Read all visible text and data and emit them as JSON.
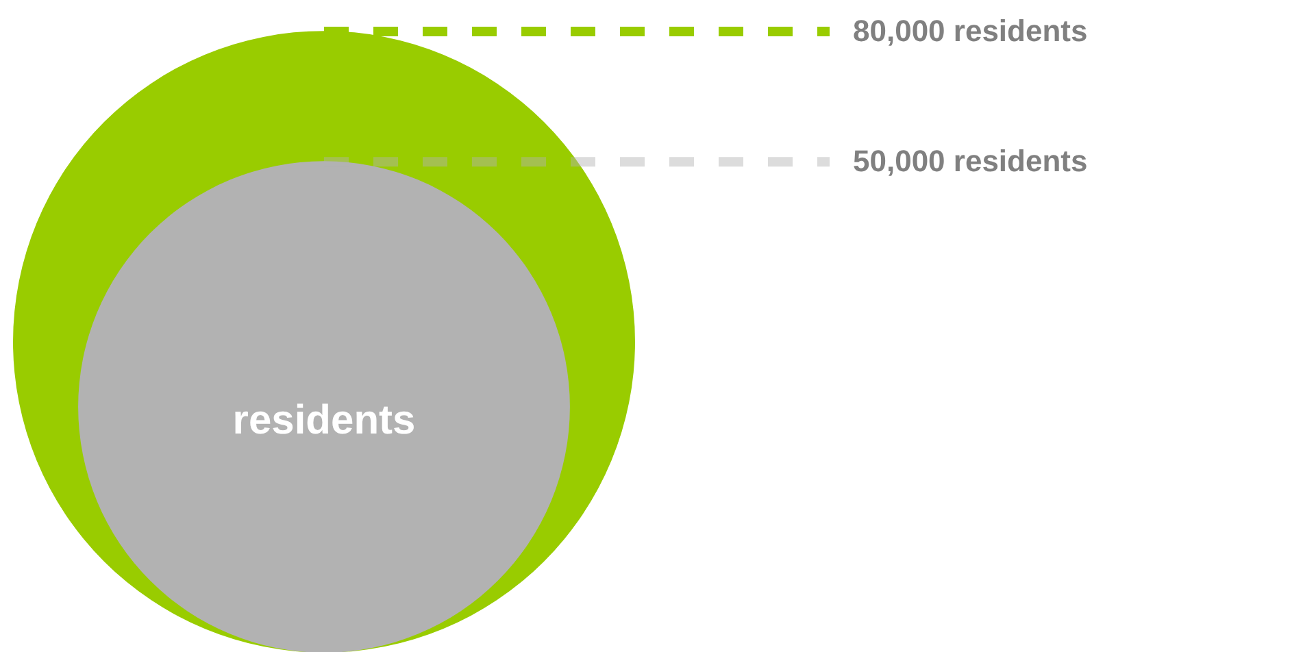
{
  "chart_data": {
    "type": "other",
    "values": [
      80000,
      50000
    ],
    "value_labels": [
      "80,000 residents",
      "50,000  residents"
    ],
    "colors": [
      "#99cc00",
      "#b2b2b2"
    ],
    "annotations": [
      "residents"
    ]
  }
}
